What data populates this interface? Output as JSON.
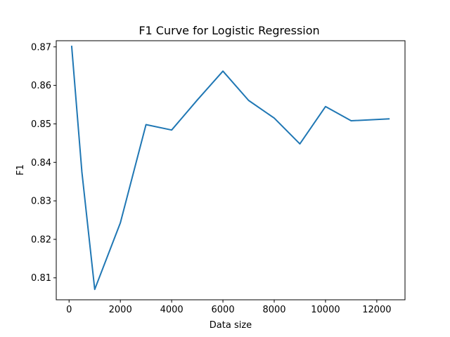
{
  "chart_data": {
    "type": "line",
    "title": "F1 Curve for Logistic Regression",
    "xlabel": "Data size",
    "ylabel": "F1",
    "xlim": [
      -500,
      13100
    ],
    "ylim": [
      0.8043,
      0.8716
    ],
    "x_ticks": [
      0,
      2000,
      4000,
      6000,
      8000,
      10000,
      12000
    ],
    "x_tick_labels": [
      "0",
      "2000",
      "4000",
      "6000",
      "8000",
      "10000",
      "12000"
    ],
    "y_ticks": [
      0.81,
      0.82,
      0.83,
      0.84,
      0.85,
      0.86,
      0.87
    ],
    "y_tick_labels": [
      "0.81",
      "0.82",
      "0.83",
      "0.84",
      "0.85",
      "0.86",
      "0.87"
    ],
    "grid": false,
    "series": [
      {
        "color": "#1f77b4",
        "x": [
          100,
          500,
          1000,
          2000,
          3000,
          4000,
          5000,
          6000,
          7000,
          8000,
          9000,
          10000,
          11000,
          12500
        ],
        "y": [
          0.8703,
          0.8375,
          0.807,
          0.8243,
          0.8498,
          0.8484,
          0.8562,
          0.8637,
          0.8561,
          0.8515,
          0.8448,
          0.8545,
          0.8508,
          0.8513
        ]
      }
    ]
  }
}
